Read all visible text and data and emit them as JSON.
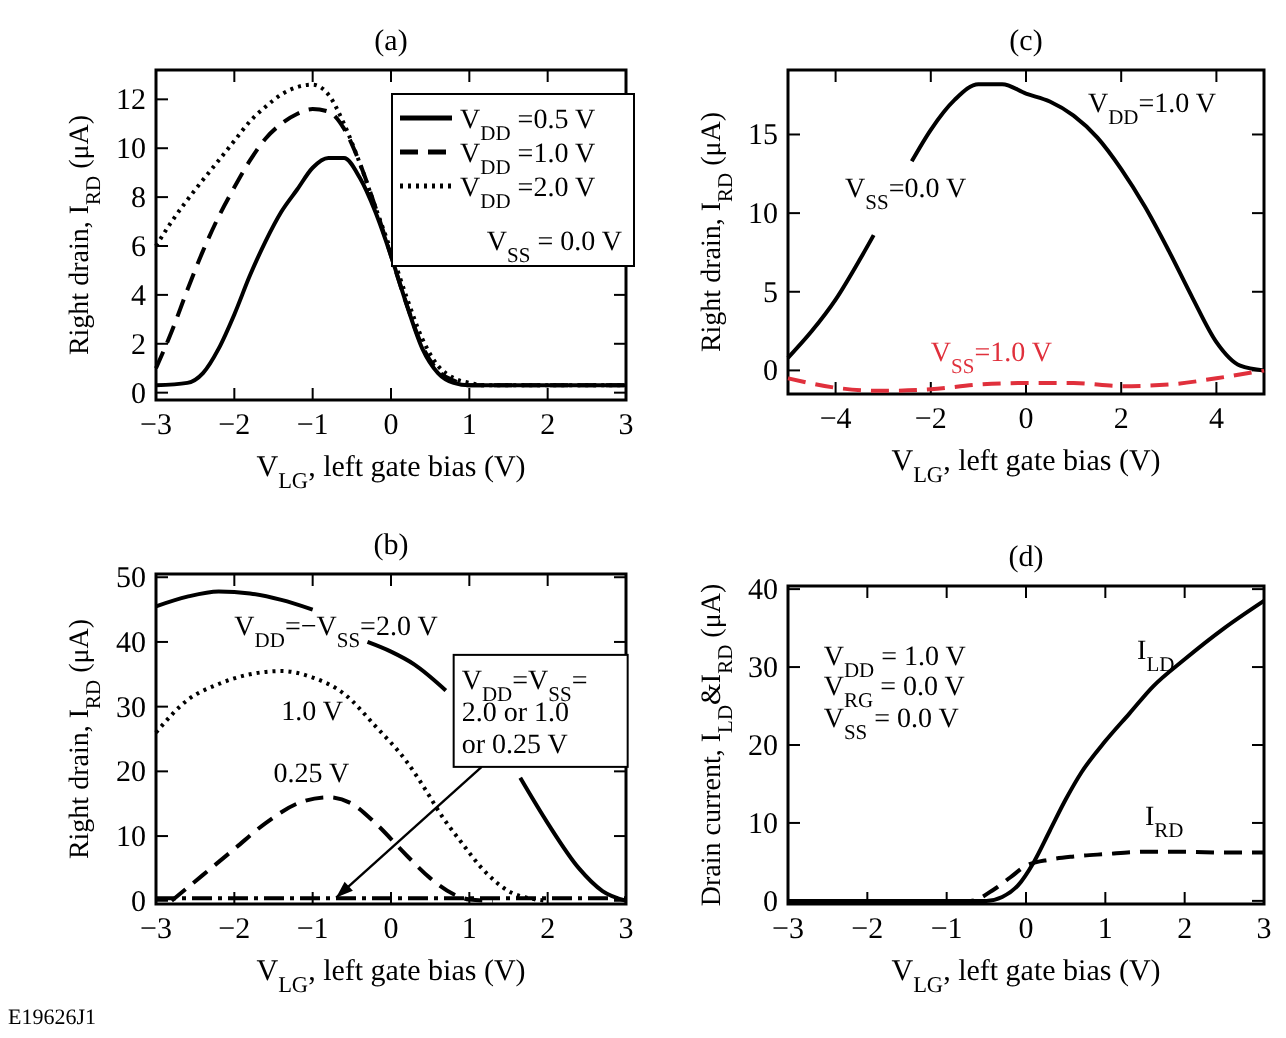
{
  "chart_data": [
    {
      "type": "line",
      "title": "(a)",
      "xlabel": "V$_{LG}$, left gate bias (V)",
      "ylabel": "Right drain, I$_{RD}$ (μA)",
      "xlim": [
        -3,
        3
      ],
      "xticks": [
        -3,
        -2,
        -1,
        0,
        1,
        2,
        3
      ],
      "ylim": [
        -0.3,
        13.2
      ],
      "yticks": [
        0,
        2,
        4,
        6,
        8,
        10,
        12
      ],
      "legend": "top right",
      "annotations": [
        "V$_{SS}$ = 0.0 V"
      ],
      "series": [
        {
          "name": "V$_{DD}$ =0.5 V",
          "color": "#000000",
          "line_style": "solid",
          "x": [
            -3,
            -2.6,
            -2.4,
            -2.2,
            -2,
            -1.8,
            -1.6,
            -1.4,
            -1.2,
            -1,
            -0.8,
            -0.6,
            -0.4,
            -0.2,
            0,
            0.2,
            0.4,
            0.6,
            0.8,
            1,
            2,
            3
          ],
          "values": [
            0.3,
            0.4,
            0.8,
            1.8,
            3.2,
            4.8,
            6.2,
            7.4,
            8.3,
            9.2,
            9.6,
            9.6,
            8.8,
            7.4,
            5.6,
            3.6,
            1.8,
            0.8,
            0.4,
            0.3,
            0.3,
            0.3
          ]
        },
        {
          "name": "V$_{DD}$ =1.0 V",
          "color": "#000000",
          "line_style": "dashed",
          "x": [
            -3,
            -2.8,
            -2.6,
            -2.4,
            -2.2,
            -2,
            -1.8,
            -1.6,
            -1.4,
            -1.2,
            -1,
            -0.8,
            -0.6,
            -0.4,
            -0.2,
            0,
            0.2,
            0.4,
            0.6,
            0.8,
            1,
            2,
            3
          ],
          "values": [
            1.0,
            2.5,
            4.2,
            5.8,
            7.2,
            8.4,
            9.5,
            10.4,
            11.0,
            11.4,
            11.6,
            11.5,
            10.8,
            9.4,
            7.6,
            5.6,
            3.6,
            1.9,
            0.9,
            0.5,
            0.3,
            0.3,
            0.3
          ]
        },
        {
          "name": "V$_{DD}$ =2.0 V",
          "color": "#000000",
          "line_style": "dotted",
          "x": [
            -3,
            -2.8,
            -2.5,
            -2.2,
            -2,
            -1.8,
            -1.6,
            -1.4,
            -1.2,
            -1,
            -0.8,
            -0.6,
            -0.4,
            -0.2,
            0,
            0.2,
            0.4,
            0.6,
            0.8,
            1,
            1.2,
            3
          ],
          "values": [
            6,
            7,
            8.3,
            9.5,
            10.3,
            11.1,
            11.7,
            12.2,
            12.5,
            12.6,
            12.2,
            11.0,
            9.4,
            7.6,
            5.8,
            3.9,
            2.2,
            1.1,
            0.6,
            0.4,
            0.3,
            0.3
          ]
        }
      ]
    },
    {
      "type": "line",
      "title": "(c)",
      "xlabel": "V$_{LG}$, left gate bias (V)",
      "ylabel": "Right drain, I$_{RD}$ (μA)",
      "xlim": [
        -5,
        5
      ],
      "xticks": [
        -4,
        -2,
        0,
        2,
        4
      ],
      "ylim": [
        -1.5,
        19.1
      ],
      "yticks": [
        0,
        5,
        10,
        15
      ],
      "annotations": [
        "V$_{DD}$=1.0 V"
      ],
      "series": [
        {
          "name": "V$_{SS}$=0.0 V",
          "color": "#000000",
          "line_style": "solid",
          "x": [
            -5,
            -4.5,
            -4,
            -3.5,
            -3.2,
            -2.8,
            -2.4,
            -2,
            -1.5,
            -1,
            -0.5,
            0,
            0.5,
            1,
            1.5,
            2,
            2.5,
            3,
            3.5,
            4,
            4.5,
            5
          ],
          "values": [
            0.8,
            2.5,
            4.5,
            7,
            8.6,
            null,
            13.3,
            15.3,
            17.2,
            18.2,
            18.2,
            17.6,
            17.1,
            16.2,
            14.8,
            12.8,
            10.4,
            7.6,
            4.6,
            1.8,
            0.3,
            0.0
          ]
        },
        {
          "name": "V$_{SS}$=1.0 V",
          "color": "#e0303c",
          "line_style": "dashed",
          "x": [
            -5,
            -4,
            -3,
            -2,
            -1,
            0,
            1,
            2,
            3,
            4,
            5
          ],
          "values": [
            -0.5,
            -1.1,
            -1.3,
            -1.2,
            -0.9,
            -0.8,
            -0.8,
            -1.0,
            -0.9,
            -0.5,
            0.0
          ]
        }
      ]
    },
    {
      "type": "line",
      "title": "(b)",
      "xlabel": "V$_{LG}$, left gate bias (V)",
      "ylabel": "Right drain, I$_{RD}$ (μA)",
      "xlim": [
        -3,
        3
      ],
      "xticks": [
        -3,
        -2,
        -1,
        0,
        1,
        2,
        3
      ],
      "ylim": [
        -0.5,
        50.5
      ],
      "yticks": [
        0,
        10,
        20,
        30,
        40,
        50
      ],
      "annotations": [
        {
          "text": "V$_{DD}$=V$_{SS}$=\n2.0  or 1.0\nor 0.25 V",
          "x": -0.7,
          "y": 0.5
        },
        "E19626J1"
      ],
      "series": [
        {
          "name": "V$_{DD}$=−V$_{SS}$=2.0 V",
          "color": "#000000",
          "line_style": "solid",
          "x": [
            -3,
            -2.6,
            -2.2,
            -1.8,
            -1.4,
            -1.0,
            -0.6,
            -0.3,
            0,
            0.3,
            0.7,
            1.2,
            1.65,
            2,
            2.4,
            2.7,
            3
          ],
          "values": [
            45.5,
            47,
            47.8,
            47.5,
            46.5,
            45,
            null,
            40,
            38.5,
            36.5,
            32.5,
            null,
            19,
            12,
            5,
            1.5,
            0
          ]
        },
        {
          "name": "1.0 V",
          "color": "#000000",
          "line_style": "dotted",
          "x": [
            -3,
            -2.6,
            -2.2,
            -1.8,
            -1.4,
            -1.0,
            -0.6,
            -0.2,
            0.2,
            0.5,
            0.6,
            0.9,
            1.2,
            1.5,
            1.8,
            2
          ],
          "values": [
            26,
            31,
            33.5,
            35,
            35.5,
            34.5,
            32,
            27,
            21.5,
            16,
            14,
            9,
            4.5,
            1.5,
            0.3,
            0
          ]
        },
        {
          "name": "0.25 V",
          "color": "#000000",
          "line_style": "dashed",
          "x": [
            -2.8,
            -2.7,
            -2.4,
            -2,
            -1.6,
            -1.2,
            -0.8,
            -0.5,
            -0.2,
            0.2,
            0.5,
            0.8,
            1,
            1.3
          ],
          "values": [
            0,
            1,
            4,
            8,
            12,
            15,
            16,
            15,
            12,
            7,
            3.5,
            1,
            0.2,
            0
          ]
        },
        {
          "color": "#000000",
          "line_style": "dashdot",
          "x": [
            -3,
            -2,
            -1,
            0,
            1,
            2,
            3
          ],
          "values": [
            0.4,
            0.4,
            0.4,
            0.4,
            0.4,
            0.4,
            0.4
          ]
        }
      ]
    },
    {
      "type": "line",
      "title": "(d)",
      "xlabel": "V$_{LG}$, left gate bias (V)",
      "ylabel": "Drain current, I$_{LD}$&I$_{RD}$ (μA)",
      "xlim": [
        -3,
        3
      ],
      "xticks": [
        -3,
        -2,
        -1,
        0,
        1,
        2,
        3
      ],
      "ylim": [
        -0.4,
        40.4
      ],
      "yticks": [
        0,
        10,
        20,
        30,
        40
      ],
      "annotations": [
        "V$_{DD}$ = 1.0 V",
        "V$_{RG}$ = 0.0 V",
        "V$_{SS}$ = 0.0 V"
      ],
      "series": [
        {
          "name": "I$_{LD}$",
          "color": "#000000",
          "line_style": "solid",
          "x": [
            -3,
            -0.5,
            -0.3,
            -0.1,
            0.1,
            0.3,
            0.5,
            0.7,
            1,
            1.3,
            1.6,
            2,
            2.5,
            3
          ],
          "values": [
            0,
            0,
            0.5,
            2,
            5,
            9,
            13,
            16.5,
            20.5,
            24,
            27.5,
            31,
            35,
            38.5
          ]
        },
        {
          "name": "I$_{RD}$",
          "color": "#000000",
          "line_style": "dashed",
          "x": [
            -3,
            -0.7,
            -0.4,
            -0.2,
            0,
            0.3,
            0.6,
            1,
            1.5,
            2,
            2.5,
            3
          ],
          "values": [
            0,
            0,
            1.5,
            3,
            4.5,
            5.3,
            5.7,
            6,
            6.3,
            6.3,
            6.2,
            6.2
          ]
        }
      ]
    }
  ]
}
